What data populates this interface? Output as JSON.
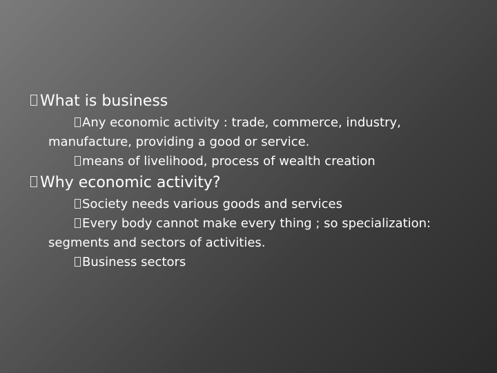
{
  "slide": {
    "items": [
      {
        "level": 1,
        "text": "What is business"
      },
      {
        "level": 2,
        "text": "Any economic activity : trade, commerce, industry, manufacture, providing a good or service."
      },
      {
        "level": 2,
        "text": "means of livelihood, process of wealth creation"
      },
      {
        "level": 1,
        "text": "Why economic activity?"
      },
      {
        "level": 2,
        "text": "Society needs various goods and services"
      },
      {
        "level": 2,
        "text": "Every body cannot make every thing ; so specialization: segments and sectors of activities."
      },
      {
        "level": 2,
        "text": "Business sectors"
      }
    ]
  }
}
